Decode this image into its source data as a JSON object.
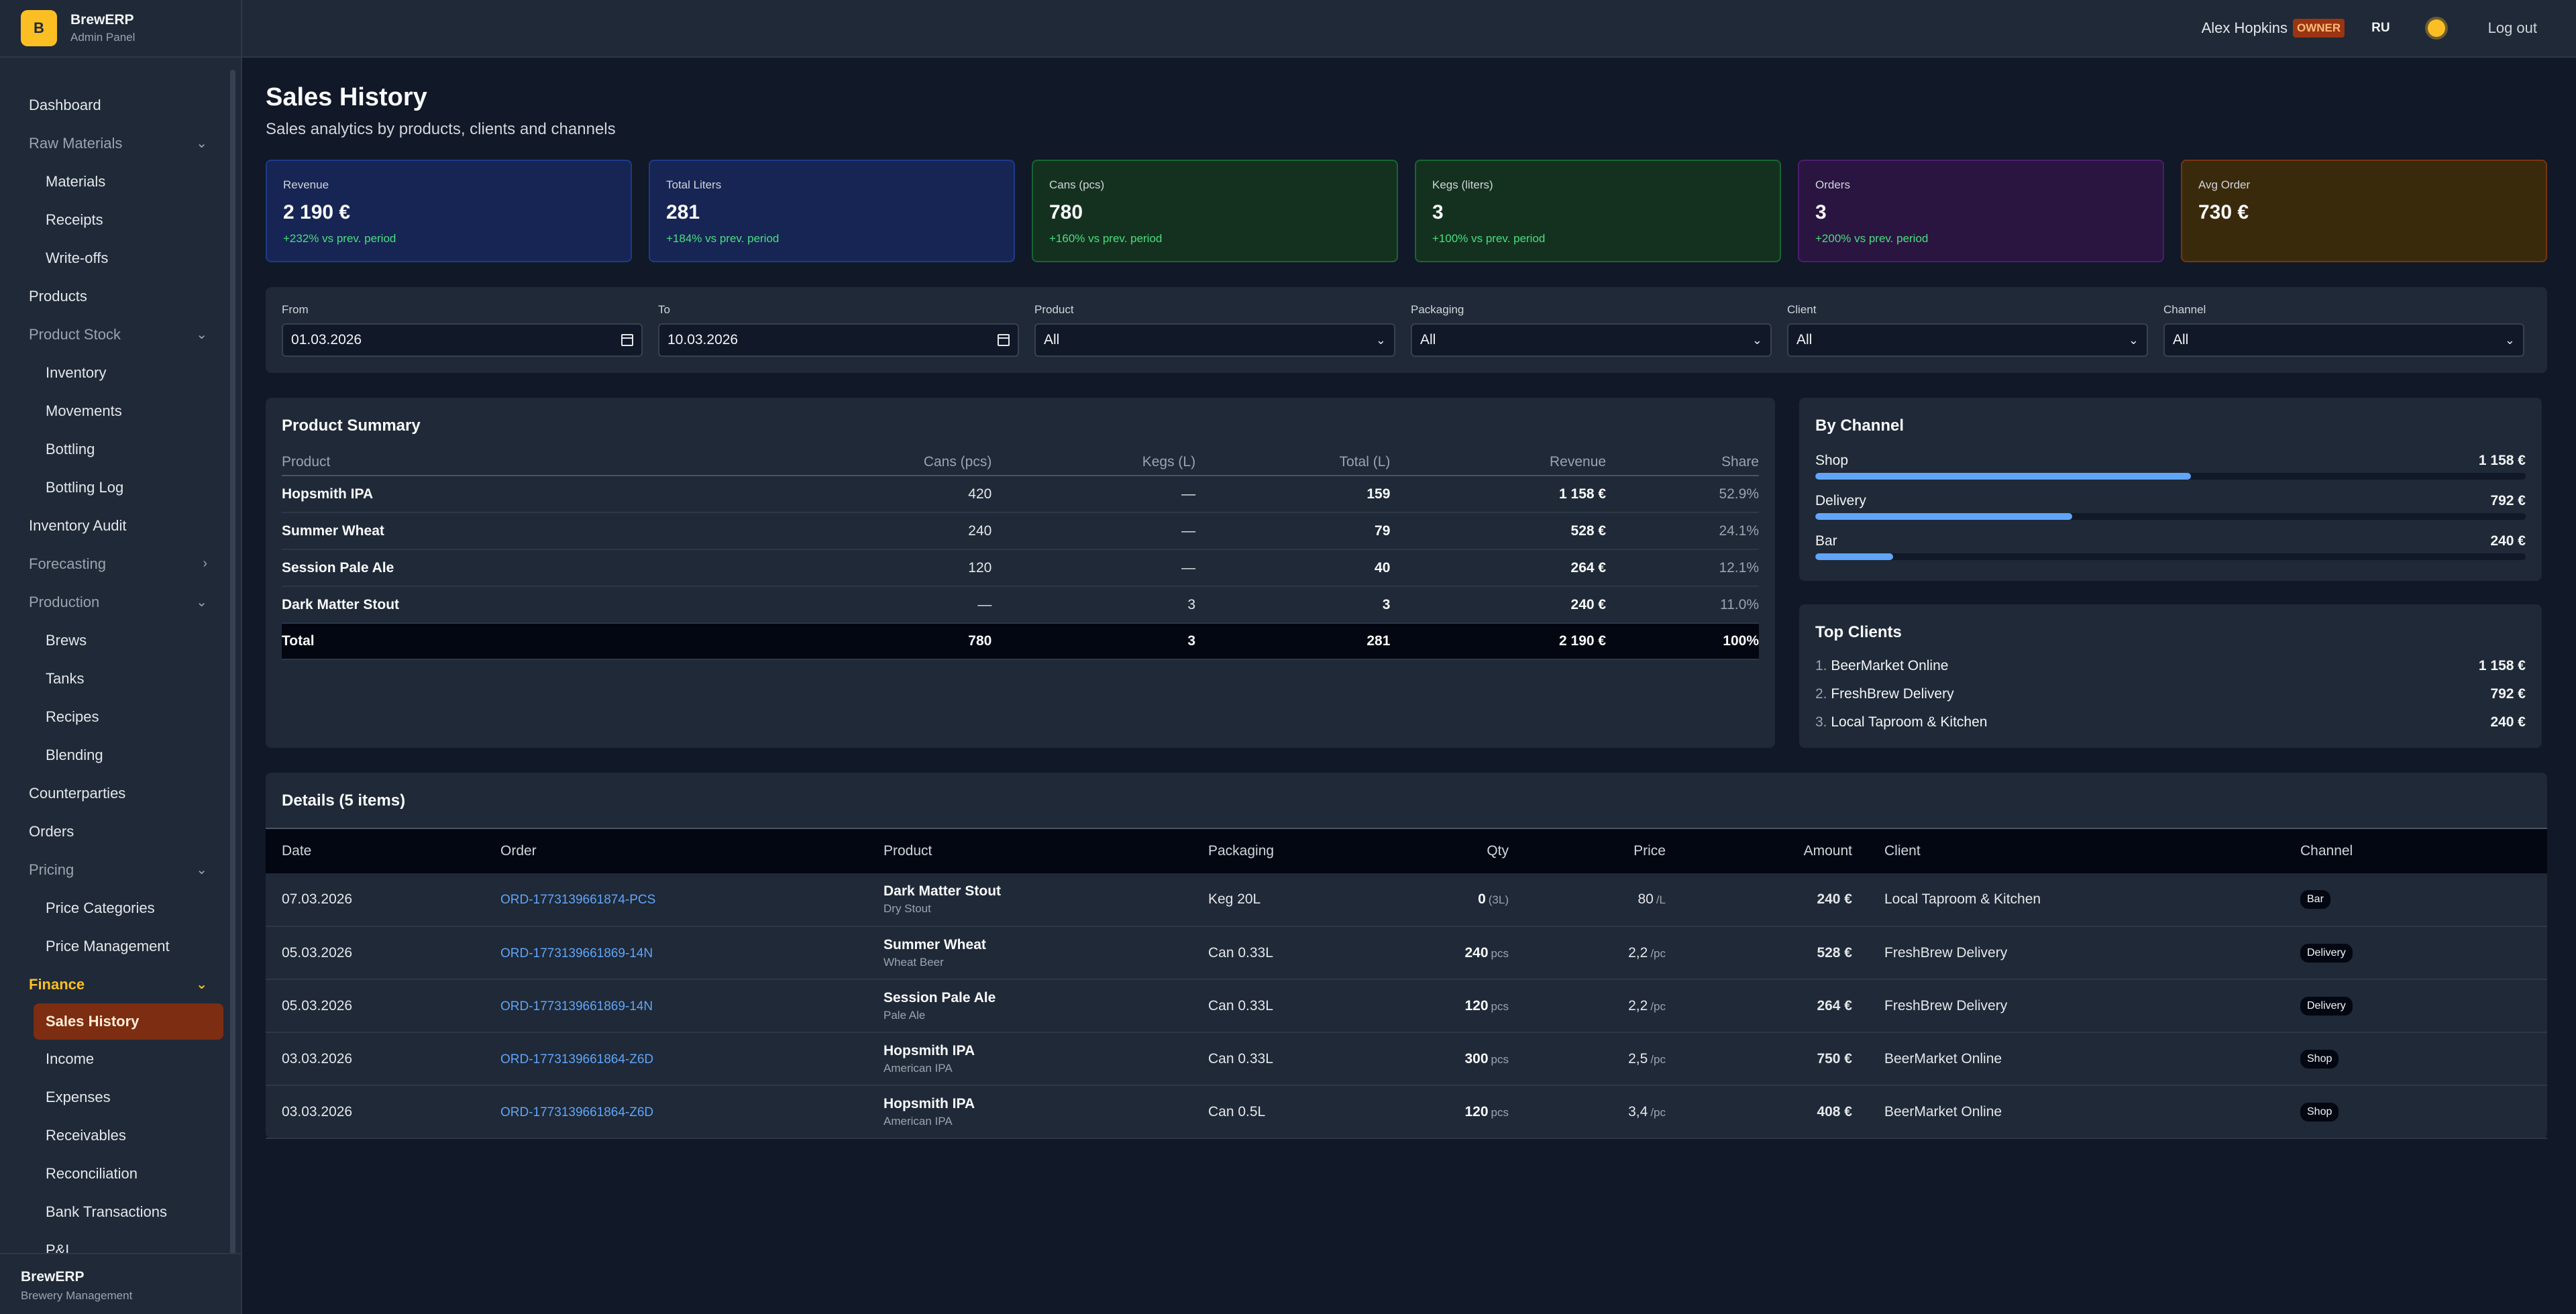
{
  "brand": {
    "logo": "B",
    "name": "BrewERP",
    "sub": "Admin Panel"
  },
  "footer": {
    "name": "BrewERP",
    "sub": "Brewery Management"
  },
  "nav": {
    "dashboard": "Dashboard",
    "raw_materials": "Raw Materials",
    "materials": "Materials",
    "receipts": "Receipts",
    "writeoffs": "Write-offs",
    "products": "Products",
    "product_stock": "Product Stock",
    "inventory": "Inventory",
    "movements": "Movements",
    "bottling": "Bottling",
    "bottling_log": "Bottling Log",
    "inventory_audit": "Inventory Audit",
    "forecasting": "Forecasting",
    "production": "Production",
    "brews": "Brews",
    "tanks": "Tanks",
    "recipes": "Recipes",
    "blending": "Blending",
    "counterparties": "Counterparties",
    "orders": "Orders",
    "pricing": "Pricing",
    "price_categories": "Price Categories",
    "price_management": "Price Management",
    "finance": "Finance",
    "sales_history": "Sales History",
    "income": "Income",
    "expenses": "Expenses",
    "receivables": "Receivables",
    "reconciliation": "Reconciliation",
    "bank_transactions": "Bank Transactions",
    "pl": "P&L"
  },
  "topbar": {
    "user": "Alex Hopkins",
    "role": "OWNER",
    "lang": "RU",
    "logout": "Log out"
  },
  "page": {
    "title": "Sales History",
    "subtitle": "Sales analytics by products, clients and channels"
  },
  "kpis": {
    "revenue": {
      "label": "Revenue",
      "value": "2 190 €",
      "change": "+232% vs prev. period"
    },
    "liters": {
      "label": "Total Liters",
      "value": "281",
      "change": "+184% vs prev. period"
    },
    "cans": {
      "label": "Cans (pcs)",
      "value": "780",
      "change": "+160% vs prev. period"
    },
    "kegs": {
      "label": "Kegs (liters)",
      "value": "3",
      "change": "+100% vs prev. period"
    },
    "orders": {
      "label": "Orders",
      "value": "3",
      "change": "+200% vs prev. period"
    },
    "avg": {
      "label": "Avg Order",
      "value": "730 €"
    }
  },
  "filters": {
    "from": {
      "label": "From",
      "value": "01.03.2026"
    },
    "to": {
      "label": "To",
      "value": "10.03.2026"
    },
    "product": {
      "label": "Product",
      "value": "All"
    },
    "packaging": {
      "label": "Packaging",
      "value": "All"
    },
    "client": {
      "label": "Client",
      "value": "All"
    },
    "channel": {
      "label": "Channel",
      "value": "All"
    }
  },
  "summary": {
    "title": "Product Summary",
    "headers": {
      "product": "Product",
      "cans": "Cans (pcs)",
      "kegs": "Kegs (L)",
      "total": "Total (L)",
      "revenue": "Revenue",
      "share": "Share"
    },
    "rows": [
      {
        "product": "Hopsmith IPA",
        "cans": "420",
        "kegs": "—",
        "total": "159",
        "revenue": "1 158 €",
        "share": "52.9%"
      },
      {
        "product": "Summer Wheat",
        "cans": "240",
        "kegs": "—",
        "total": "79",
        "revenue": "528 €",
        "share": "24.1%"
      },
      {
        "product": "Session Pale Ale",
        "cans": "120",
        "kegs": "—",
        "total": "40",
        "revenue": "264 €",
        "share": "12.1%"
      },
      {
        "product": "Dark Matter Stout",
        "cans": "—",
        "kegs": "3",
        "total": "3",
        "revenue": "240 €",
        "share": "11.0%"
      }
    ],
    "total": {
      "label": "Total",
      "cans": "780",
      "kegs": "3",
      "total": "281",
      "revenue": "2 190 €",
      "share": "100%"
    }
  },
  "by_channel": {
    "title": "By Channel",
    "items": [
      {
        "name": "Shop",
        "value": "1 158 €",
        "fraction": 0.529
      },
      {
        "name": "Delivery",
        "value": "792 €",
        "fraction": 0.362
      },
      {
        "name": "Bar",
        "value": "240 €",
        "fraction": 0.11
      }
    ]
  },
  "top_clients": {
    "title": "Top Clients",
    "items": [
      {
        "idx": "1.",
        "name": "BeerMarket Online",
        "value": "1 158 €"
      },
      {
        "idx": "2.",
        "name": "FreshBrew Delivery",
        "value": "792 €"
      },
      {
        "idx": "3.",
        "name": "Local Taproom & Kitchen",
        "value": "240 €"
      }
    ]
  },
  "details": {
    "title": "Details (5 items)",
    "headers": {
      "date": "Date",
      "order": "Order",
      "product": "Product",
      "packaging": "Packaging",
      "qty": "Qty",
      "price": "Price",
      "amount": "Amount",
      "client": "Client",
      "channel": "Channel"
    },
    "rows": [
      {
        "date": "07.03.2026",
        "order": "ORD-1773139661874-PCS",
        "product": "Dark Matter Stout",
        "style": "Dry Stout",
        "packaging": "Keg 20L",
        "qty": "0",
        "qty_unit": "(3L)",
        "price": "80",
        "price_unit": "/L",
        "amount": "240 €",
        "client": "Local Taproom & Kitchen",
        "channel": "Bar"
      },
      {
        "date": "05.03.2026",
        "order": "ORD-1773139661869-14N",
        "product": "Summer Wheat",
        "style": "Wheat Beer",
        "packaging": "Can 0.33L",
        "qty": "240",
        "qty_unit": "pcs",
        "price": "2,2",
        "price_unit": "/pc",
        "amount": "528 €",
        "client": "FreshBrew Delivery",
        "channel": "Delivery"
      },
      {
        "date": "05.03.2026",
        "order": "ORD-1773139661869-14N",
        "product": "Session Pale Ale",
        "style": "Pale Ale",
        "packaging": "Can 0.33L",
        "qty": "120",
        "qty_unit": "pcs",
        "price": "2,2",
        "price_unit": "/pc",
        "amount": "264 €",
        "client": "FreshBrew Delivery",
        "channel": "Delivery"
      },
      {
        "date": "03.03.2026",
        "order": "ORD-1773139661864-Z6D",
        "product": "Hopsmith IPA",
        "style": "American IPA",
        "packaging": "Can 0.33L",
        "qty": "300",
        "qty_unit": "pcs",
        "price": "2,5",
        "price_unit": "/pc",
        "amount": "750 €",
        "client": "BeerMarket Online",
        "channel": "Shop"
      },
      {
        "date": "03.03.2026",
        "order": "ORD-1773139661864-Z6D",
        "product": "Hopsmith IPA",
        "style": "American IPA",
        "packaging": "Can 0.5L",
        "qty": "120",
        "qty_unit": "pcs",
        "price": "3,4",
        "price_unit": "/pc",
        "amount": "408 €",
        "client": "BeerMarket Online",
        "channel": "Shop"
      }
    ]
  }
}
